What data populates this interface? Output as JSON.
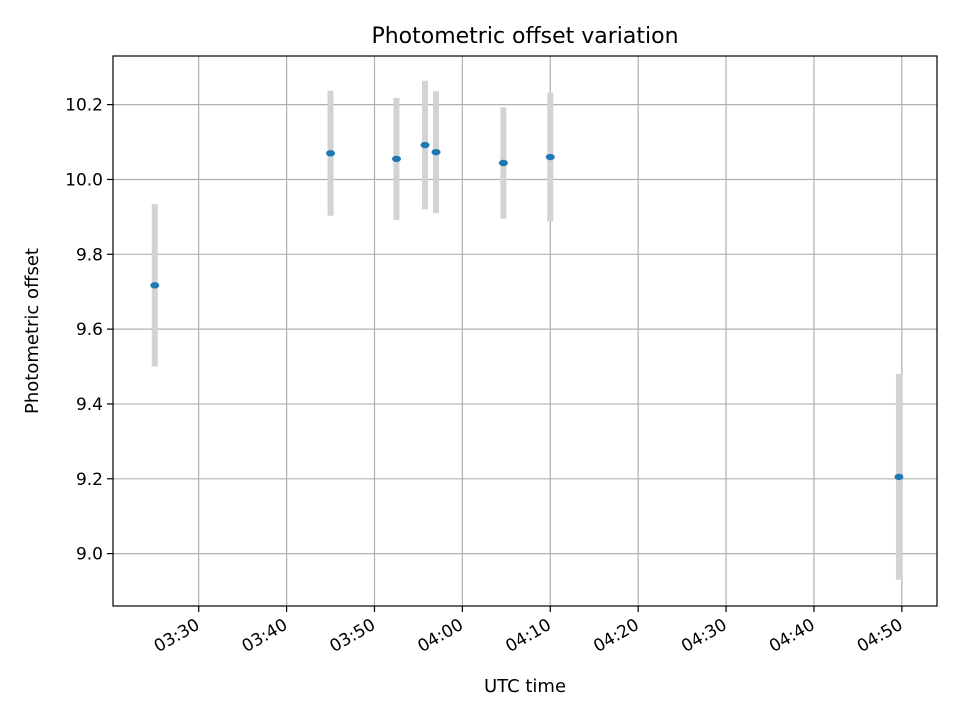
{
  "chart_data": {
    "type": "scatter",
    "title": "Photometric offset variation",
    "xlabel": "UTC time",
    "ylabel": "Photometric offset",
    "x_ticks": [
      "03:30",
      "03:40",
      "03:50",
      "04:00",
      "04:10",
      "04:20",
      "04:30",
      "04:40",
      "04:50"
    ],
    "y_ticks": [
      "9.0",
      "9.2",
      "9.4",
      "9.6",
      "9.8",
      "10.0",
      "10.2"
    ],
    "xlim": [
      "03:20:15",
      "04:54:00"
    ],
    "ylim": [
      8.86,
      10.33
    ],
    "grid": true,
    "series": [
      {
        "color": "#1f77b4",
        "errorbar_color": "#d3d3d3",
        "points": [
          {
            "x": "03:25:00",
            "y": 9.717,
            "err": 0.217
          },
          {
            "x": "03:45:00",
            "y": 10.07,
            "err": 0.167
          },
          {
            "x": "03:52:30",
            "y": 10.055,
            "err": 0.163
          },
          {
            "x": "03:55:45",
            "y": 10.092,
            "err": 0.172
          },
          {
            "x": "03:57:00",
            "y": 10.073,
            "err": 0.163
          },
          {
            "x": "04:04:40",
            "y": 10.044,
            "err": 0.149
          },
          {
            "x": "04:10:00",
            "y": 10.06,
            "err": 0.172
          },
          {
            "x": "04:49:40",
            "y": 9.205,
            "err": 0.275
          }
        ]
      }
    ]
  }
}
